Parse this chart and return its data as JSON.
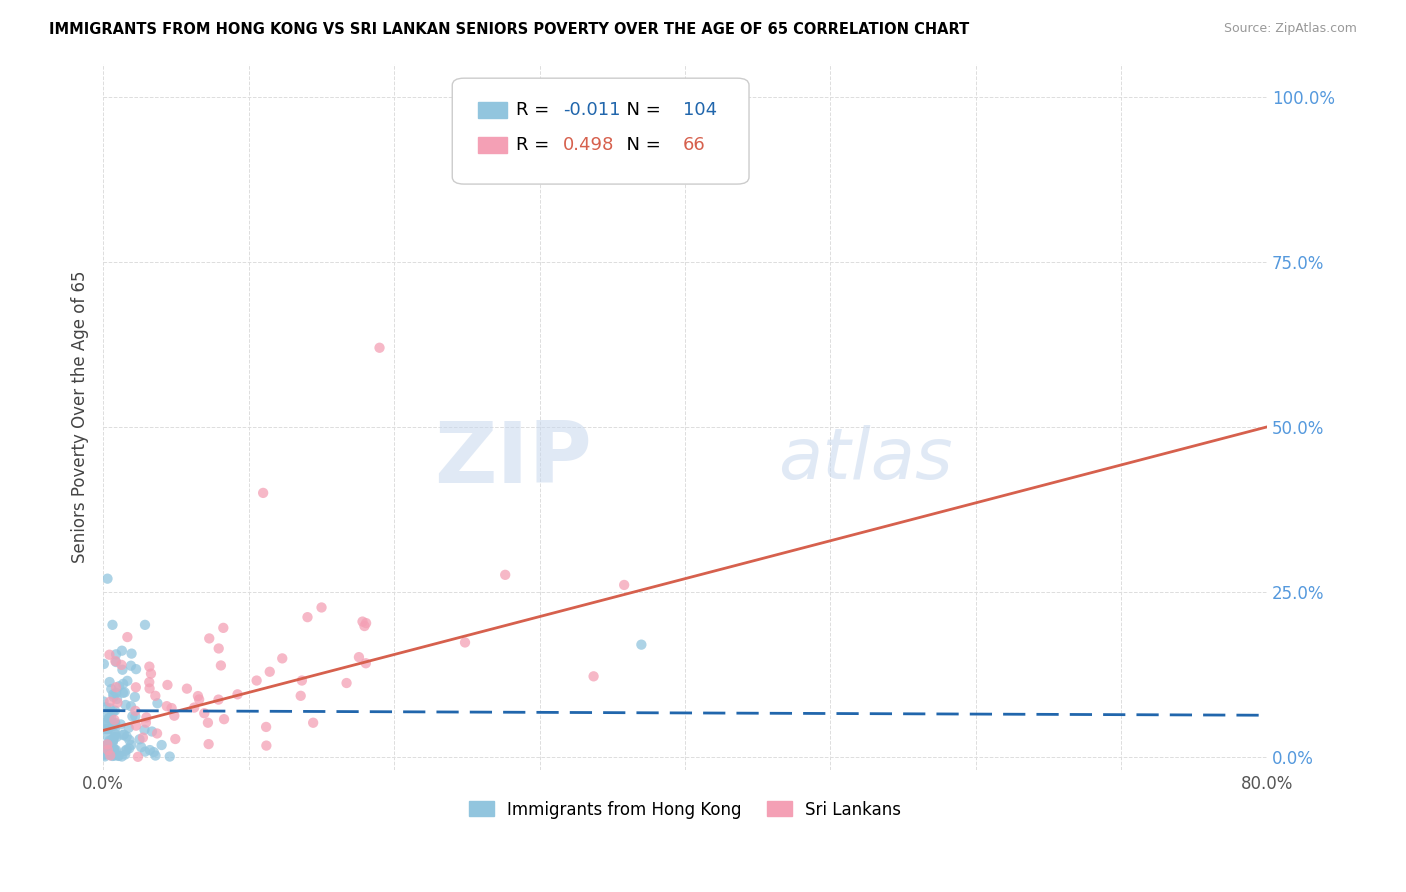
{
  "title": "IMMIGRANTS FROM HONG KONG VS SRI LANKAN SENIORS POVERTY OVER THE AGE OF 65 CORRELATION CHART",
  "source": "Source: ZipAtlas.com",
  "ylabel": "Seniors Poverty Over the Age of 65",
  "xmin": 0.0,
  "xmax": 0.8,
  "ymin": -0.02,
  "ymax": 1.05,
  "yticks": [
    0.0,
    0.25,
    0.5,
    0.75,
    1.0
  ],
  "ytick_labels": [
    "0.0%",
    "25.0%",
    "50.0%",
    "75.0%",
    "100.0%"
  ],
  "xtick_labels": [
    "0.0%",
    "80.0%"
  ],
  "xtick_vals": [
    0.0,
    0.8
  ],
  "hk_color": "#92c5de",
  "sl_color": "#f4a0b5",
  "hk_line_color": "#2166ac",
  "sl_line_color": "#d6604d",
  "hk_line_dash": [
    8,
    4
  ],
  "R_hk": -0.011,
  "N_hk": 104,
  "R_sl": 0.498,
  "N_sl": 66,
  "watermark_zip": "ZIP",
  "watermark_atlas": "atlas",
  "legend_label_hk": "Immigrants from Hong Kong",
  "legend_label_sl": "Sri Lankans",
  "hk_line_y0": 0.07,
  "hk_line_y1": 0.063,
  "sl_line_y0": 0.04,
  "sl_line_y1": 0.5,
  "scatter_size": 55,
  "scatter_alpha": 0.75
}
